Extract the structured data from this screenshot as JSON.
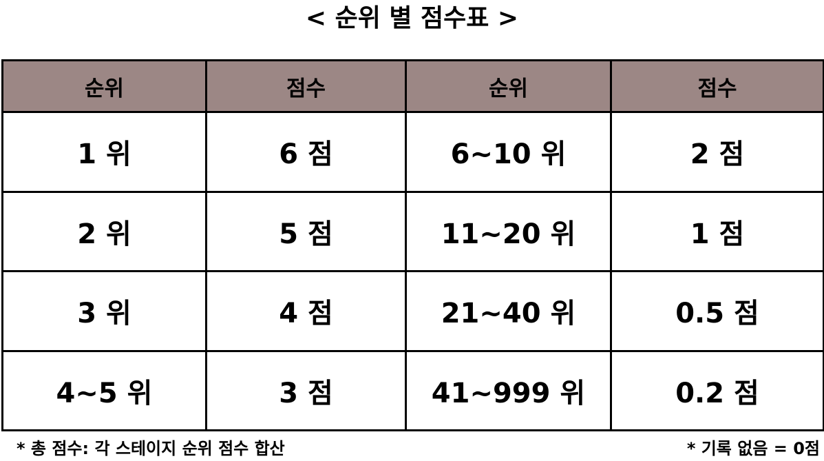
{
  "title": "< 순위 별 점수표 >",
  "table": {
    "headers": [
      "순위",
      "점수",
      "순위",
      "점수"
    ],
    "rows": [
      [
        "1 위",
        "6 점",
        "6~10 위",
        "2 점"
      ],
      [
        "2 위",
        "5 점",
        "11~20 위",
        "1 점"
      ],
      [
        "3 위",
        "4 점",
        "21~40 위",
        "0.5 점"
      ],
      [
        "4~5 위",
        "3 점",
        "41~999 위",
        "0.2 점"
      ]
    ],
    "header_color": "#9c8785"
  },
  "footnotes": {
    "left": "* 총 점수: 각 스테이지 순위 점수 합산",
    "right": "* 기록 없음 = 0점"
  }
}
